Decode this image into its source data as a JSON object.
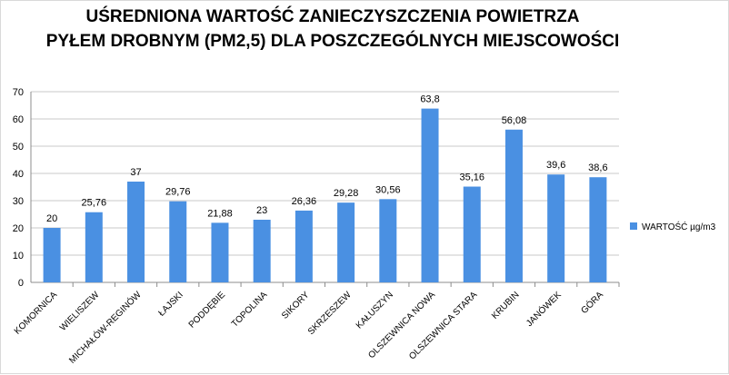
{
  "chart_data": {
    "type": "bar",
    "title_lines": [
      "UŚREDNIONA WARTOŚĆ ZANIECZYSZCZENIA POWIETRZA",
      "PYŁEM DROBNYM (PM2,5) DLA POSZCZEGÓLNYCH MIEJSCOWOŚCI"
    ],
    "categories": [
      "KOMORNICA",
      "WIELISZEW",
      "MICHAŁÓW-REGINÓW",
      "ŁAJSKI",
      "PODDĘBIE",
      "TOPOLINA",
      "SIKORY",
      "SKRZESZEW",
      "KAŁUSZYN",
      "OLSZEWNICA NOWA",
      "OLSZEWNICA STARA",
      "KRUBIN",
      "JANÓWEK",
      "GÓRA"
    ],
    "data_labels": [
      "20",
      "25,76",
      "37",
      "29,76",
      "21,88",
      "23",
      "26,36",
      "29,28",
      "30,56",
      "63,8",
      "35,16",
      "56,08",
      "39,6",
      "38,6"
    ],
    "series": [
      {
        "name": "WARTOŚĆ µg/m3",
        "values": [
          20,
          25.76,
          37,
          29.76,
          21.88,
          23,
          26.36,
          29.28,
          30.56,
          63.8,
          35.16,
          56.08,
          39.6,
          38.6
        ]
      }
    ],
    "ylim": [
      0,
      70
    ],
    "yticks": [
      0,
      10,
      20,
      30,
      40,
      50,
      60,
      70
    ],
    "grid": true,
    "legend_position": "right",
    "colors": {
      "bar": "#4a90e2",
      "grid": "#c8c8c8",
      "axis": "#8c8c8c"
    }
  }
}
